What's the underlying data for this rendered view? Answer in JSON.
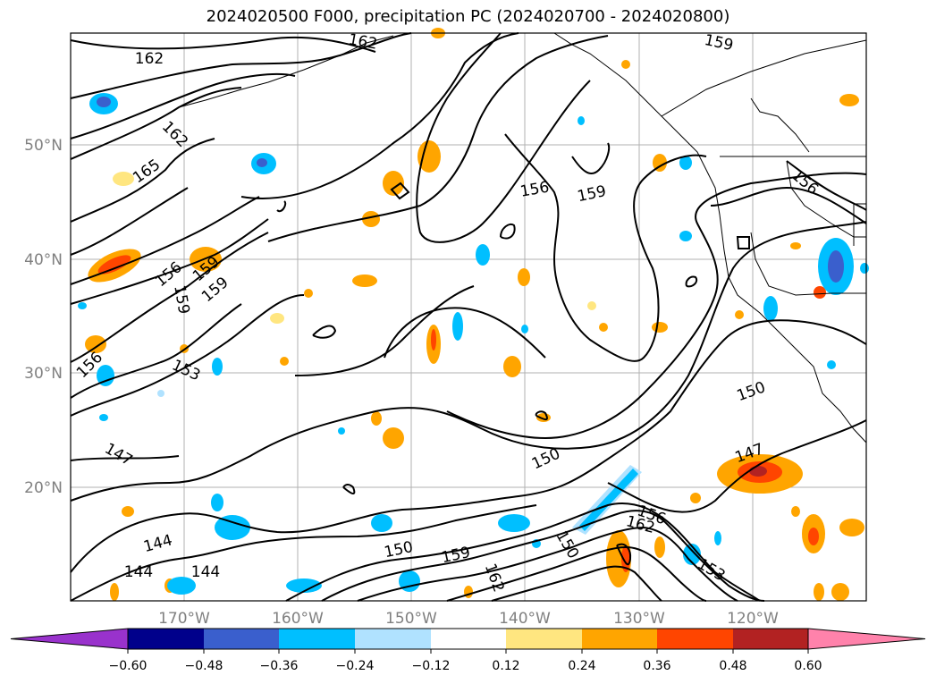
{
  "title": "2024020500 F000, precipitation PC (2024020700 - 2024020800)",
  "lat_labels": [
    "50°N",
    "40°N",
    "30°N",
    "20°N"
  ],
  "lon_labels": [
    "170°W",
    "160°W",
    "150°W",
    "140°W",
    "130°W",
    "120°W"
  ],
  "contour_labels": [
    "162",
    "162",
    "159",
    "162",
    "165",
    "156",
    "159",
    "156",
    "159",
    "159",
    "159",
    "156",
    "153",
    "156",
    "150",
    "147",
    "147",
    "150",
    "144",
    "144",
    "144",
    "150",
    "159",
    "162",
    "150",
    "156",
    "162",
    "153"
  ],
  "colorbar": {
    "ticks": [
      "−0.60",
      "−0.48",
      "−0.36",
      "−0.24",
      "−0.12",
      "0.12",
      "0.24",
      "0.36",
      "0.48",
      "0.60"
    ],
    "colors": [
      "#9932cc",
      "#00008b",
      "#3a5fcd",
      "#00bfff",
      "#b0e2ff",
      "#ffffff",
      "#ffe680",
      "#ffa500",
      "#ff4500",
      "#b22222",
      "#ff82ab"
    ]
  }
}
